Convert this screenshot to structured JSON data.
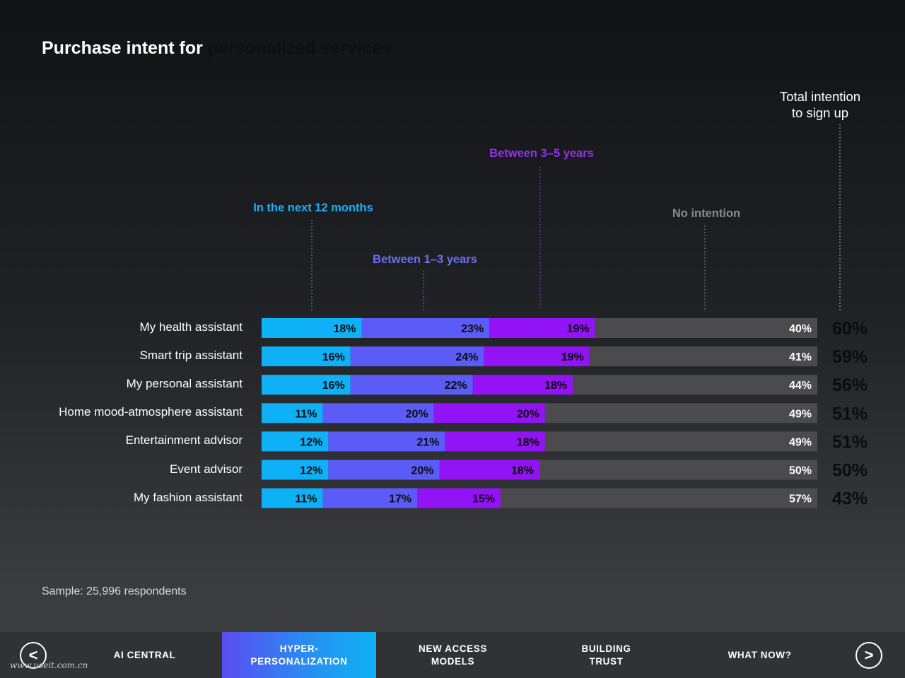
{
  "title": {
    "part_a": "Purchase intent for",
    "part_b": "personalized services"
  },
  "chart_data": {
    "type": "bar",
    "orientation": "horizontal",
    "stacked": true,
    "categories": [
      "My health assistant",
      "Smart trip assistant",
      "My personal assistant",
      "Home mood-atmosphere assistant",
      "Entertainment advisor",
      "Event advisor",
      "My fashion assistant"
    ],
    "series": [
      {
        "name": "In the next 12 months",
        "color": "#0eb1f6",
        "values": [
          18,
          16,
          16,
          11,
          12,
          12,
          11
        ]
      },
      {
        "name": "Between 1–3 years",
        "color": "#5b5cf8",
        "values": [
          23,
          24,
          22,
          20,
          21,
          20,
          17
        ]
      },
      {
        "name": "Between 3–5 years",
        "color": "#9213f5",
        "values": [
          19,
          19,
          18,
          20,
          18,
          18,
          15
        ]
      },
      {
        "name": "No intention",
        "color": "#4b4b4d",
        "values": [
          40,
          41,
          44,
          49,
          49,
          50,
          57
        ]
      }
    ],
    "totals": {
      "label": "Total intention to sign up",
      "label_lines": [
        "Total intention",
        "to sign up"
      ],
      "values": [
        60,
        59,
        56,
        51,
        51,
        50,
        43
      ]
    },
    "value_suffix": "%",
    "xlim": [
      0,
      100
    ],
    "legend": "callouts above bars"
  },
  "footer": {
    "sample": "Sample: 25,996 respondents"
  },
  "nav": {
    "prev_icon": "<",
    "next_icon": ">",
    "items": [
      {
        "lines": [
          "AI CENTRAL"
        ],
        "active": false
      },
      {
        "lines": [
          "HYPER-",
          "PERSONALIZATION"
        ],
        "active": true
      },
      {
        "lines": [
          "NEW ACCESS",
          "MODELS"
        ],
        "active": false
      },
      {
        "lines": [
          "BUILDING",
          "TRUST"
        ],
        "active": false
      },
      {
        "lines": [
          "WHAT NOW?"
        ],
        "active": false
      }
    ]
  },
  "watermark": "www.useit.com.cn"
}
